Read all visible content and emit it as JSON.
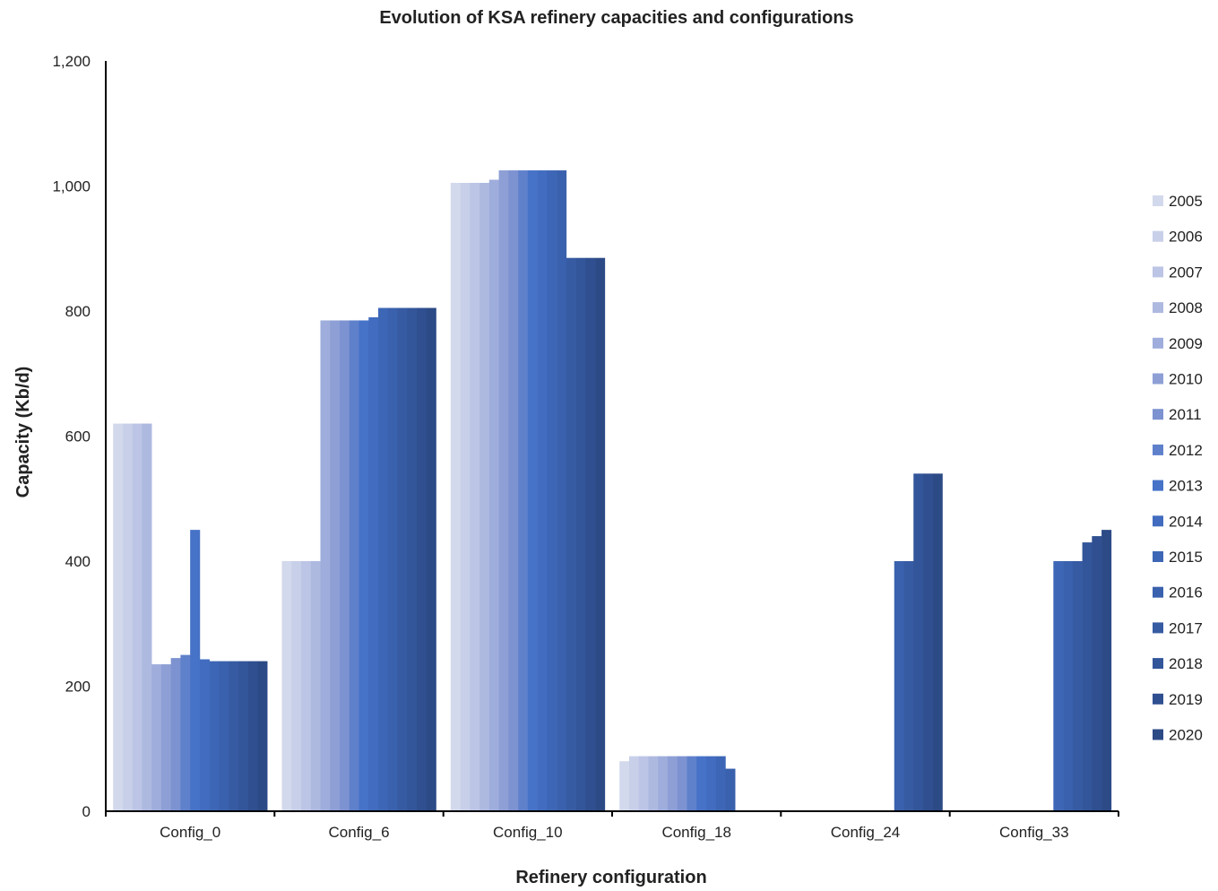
{
  "chart_data": {
    "type": "bar",
    "title": "Evolution of KSA refinery capacities and configurations",
    "xlabel": "Refinery configuration",
    "ylabel": "Capacity (Kb/d)",
    "ylim": [
      0,
      1200
    ],
    "yticks": [
      "0",
      "200",
      "400",
      "600",
      "800",
      "1,000",
      "1,200"
    ],
    "grid": false,
    "legend": "right",
    "categories": [
      "Config_0",
      "Config_6",
      "Config_10",
      "Config_18",
      "Config_24",
      "Config_33"
    ],
    "series": [
      {
        "name": "2005",
        "color": "#d3d9ec",
        "values": [
          620,
          400,
          1005,
          80,
          0,
          0
        ]
      },
      {
        "name": "2006",
        "color": "#c8d0e9",
        "values": [
          620,
          400,
          1005,
          88,
          0,
          0
        ]
      },
      {
        "name": "2007",
        "color": "#bcc5e5",
        "values": [
          620,
          400,
          1005,
          88,
          0,
          0
        ]
      },
      {
        "name": "2008",
        "color": "#aeb9e0",
        "values": [
          620,
          400,
          1005,
          88,
          0,
          0
        ]
      },
      {
        "name": "2009",
        "color": "#9eaddb",
        "values": [
          235,
          785,
          1010,
          88,
          0,
          0
        ]
      },
      {
        "name": "2010",
        "color": "#8d9fd5",
        "values": [
          235,
          785,
          1025,
          88,
          0,
          0
        ]
      },
      {
        "name": "2011",
        "color": "#7d92d0",
        "values": [
          245,
          785,
          1025,
          88,
          0,
          0
        ]
      },
      {
        "name": "2012",
        "color": "#5f80cb",
        "values": [
          250,
          785,
          1025,
          88,
          0,
          0
        ]
      },
      {
        "name": "2013",
        "color": "#4672c7",
        "values": [
          450,
          785,
          1025,
          88,
          0,
          0
        ]
      },
      {
        "name": "2014",
        "color": "#416cbf",
        "values": [
          243,
          790,
          1025,
          88,
          0,
          0
        ]
      },
      {
        "name": "2015",
        "color": "#3d67b6",
        "values": [
          240,
          805,
          1025,
          88,
          0,
          400
        ]
      },
      {
        "name": "2016",
        "color": "#3a61ad",
        "values": [
          240,
          805,
          1025,
          68,
          400,
          400
        ]
      },
      {
        "name": "2017",
        "color": "#365ba3",
        "values": [
          240,
          805,
          885,
          0,
          400,
          400
        ]
      },
      {
        "name": "2018",
        "color": "#33559a",
        "values": [
          240,
          805,
          885,
          0,
          540,
          430
        ]
      },
      {
        "name": "2019",
        "color": "#2f4f90",
        "values": [
          240,
          805,
          885,
          0,
          540,
          440
        ]
      },
      {
        "name": "2020",
        "color": "#2c4a86",
        "values": [
          240,
          805,
          885,
          0,
          540,
          450
        ]
      }
    ]
  }
}
